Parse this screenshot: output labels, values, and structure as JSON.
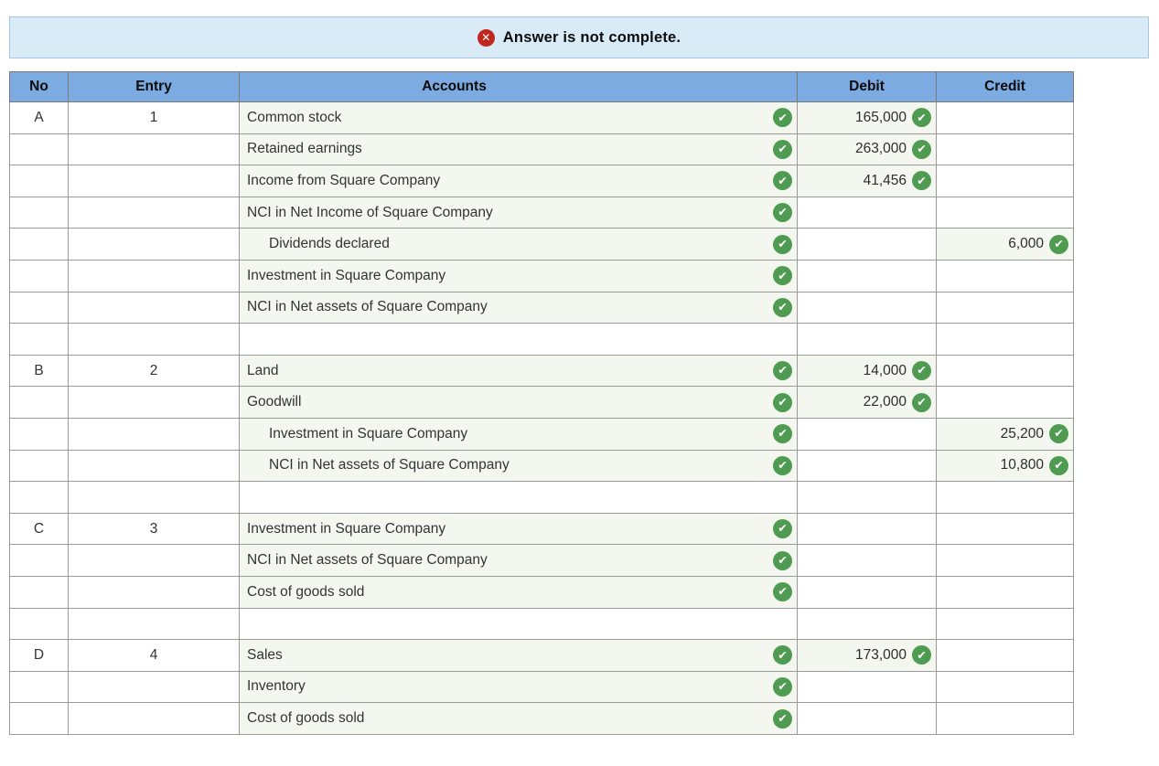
{
  "banner": {
    "icon": "error-x-icon",
    "text": "Answer is not complete."
  },
  "icons": {
    "error_glyph": "✕",
    "check_glyph": "✔",
    "check_icon": "correct-check-icon"
  },
  "colors": {
    "banner_bg": "#d8ebf7",
    "banner_border": "#a6c9de",
    "header_blue": "#7babe0",
    "row_tint": "#f4f7f0",
    "check_green": "#4e9b51",
    "error_red": "#c0281e",
    "grid_border": "#9a9a9a"
  },
  "table": {
    "headers": {
      "no": "No",
      "entry": "Entry",
      "accounts": "Accounts",
      "debit": "Debit",
      "credit": "Credit"
    },
    "rows": [
      {
        "no": "A",
        "entry": "1",
        "account": "Common stock",
        "indent": false,
        "debit": "165,000",
        "credit": ""
      },
      {
        "no": "",
        "entry": "",
        "account": "Retained earnings",
        "indent": false,
        "debit": "263,000",
        "credit": ""
      },
      {
        "no": "",
        "entry": "",
        "account": "Income from Square Company",
        "indent": false,
        "debit": "41,456",
        "credit": ""
      },
      {
        "no": "",
        "entry": "",
        "account": "NCI in Net Income of Square Company",
        "indent": false,
        "debit": "",
        "credit": ""
      },
      {
        "no": "",
        "entry": "",
        "account": "Dividends declared",
        "indent": true,
        "debit": "",
        "credit": "6,000"
      },
      {
        "no": "",
        "entry": "",
        "account": "Investment in Square Company",
        "indent": false,
        "debit": "",
        "credit": ""
      },
      {
        "no": "",
        "entry": "",
        "account": "NCI in Net assets of Square Company",
        "indent": false,
        "debit": "",
        "credit": ""
      },
      {
        "spacer": true
      },
      {
        "no": "B",
        "entry": "2",
        "account": "Land",
        "indent": false,
        "debit": "14,000",
        "credit": ""
      },
      {
        "no": "",
        "entry": "",
        "account": "Goodwill",
        "indent": false,
        "debit": "22,000",
        "credit": ""
      },
      {
        "no": "",
        "entry": "",
        "account": "Investment in Square Company",
        "indent": true,
        "debit": "",
        "credit": "25,200"
      },
      {
        "no": "",
        "entry": "",
        "account": "NCI in Net assets of Square Company",
        "indent": true,
        "debit": "",
        "credit": "10,800"
      },
      {
        "spacer": true
      },
      {
        "no": "C",
        "entry": "3",
        "account": "Investment in Square Company",
        "indent": false,
        "debit": "",
        "credit": ""
      },
      {
        "no": "",
        "entry": "",
        "account": "NCI in Net assets of Square Company",
        "indent": false,
        "debit": "",
        "credit": ""
      },
      {
        "no": "",
        "entry": "",
        "account": "Cost of goods sold",
        "indent": false,
        "debit": "",
        "credit": ""
      },
      {
        "spacer": true
      },
      {
        "no": "D",
        "entry": "4",
        "account": "Sales",
        "indent": false,
        "debit": "173,000",
        "credit": ""
      },
      {
        "no": "",
        "entry": "",
        "account": "Inventory",
        "indent": false,
        "debit": "",
        "credit": ""
      },
      {
        "no": "",
        "entry": "",
        "account": "Cost of goods sold",
        "indent": false,
        "debit": "",
        "credit": ""
      }
    ]
  }
}
